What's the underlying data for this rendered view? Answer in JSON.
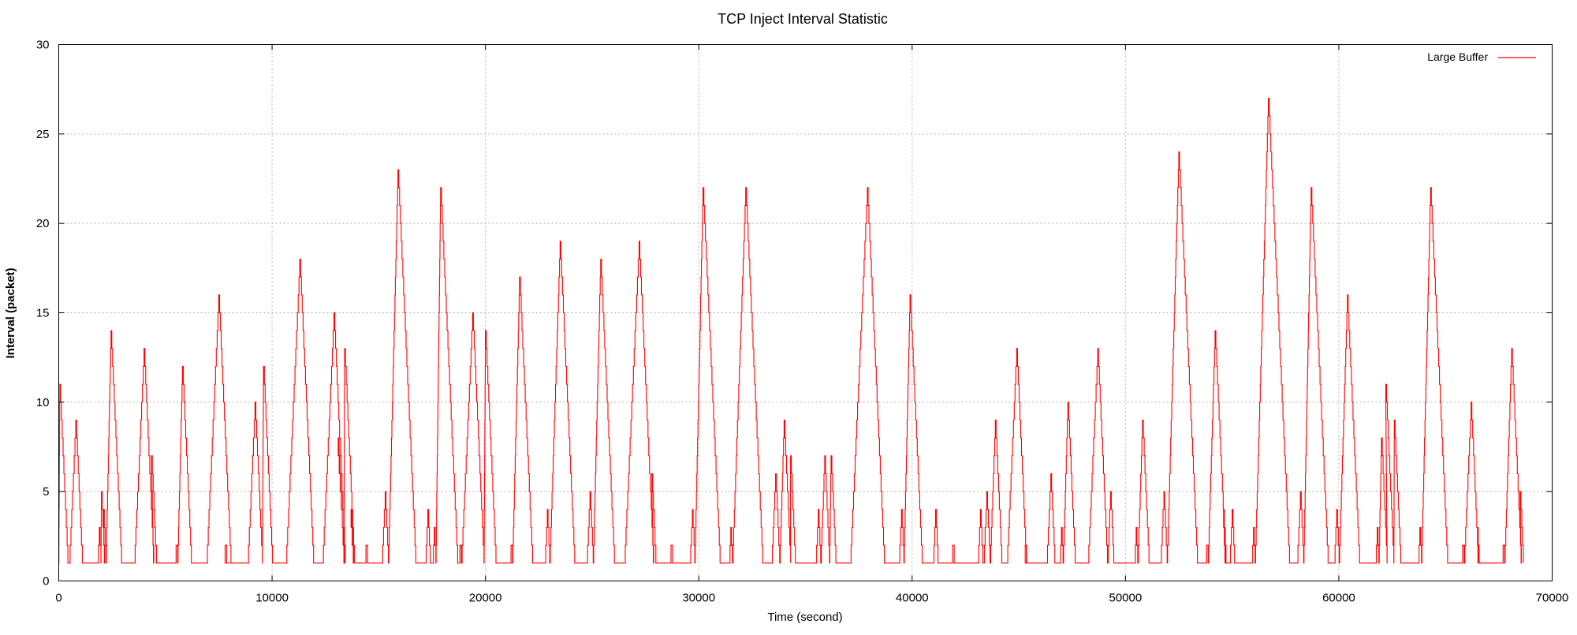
{
  "chart_data": {
    "type": "line",
    "title": "TCP Inject Interval Statistic",
    "xlabel": "Time (second)",
    "ylabel": "Interval (packet)",
    "xlim": [
      0,
      70000
    ],
    "ylim": [
      0,
      30
    ],
    "xticks": [
      "0",
      "10000",
      "20000",
      "30000",
      "40000",
      "50000",
      "60000",
      "70000"
    ],
    "yticks": [
      "0",
      "5",
      "10",
      "15",
      "20",
      "25",
      "30"
    ],
    "grid": true,
    "legend_position": "top-right",
    "baseline": 1,
    "series": [
      {
        "name": "Large Buffer",
        "color": "#ff0000",
        "peaks": [
          [
            50,
            11
          ],
          [
            800,
            9
          ],
          [
            1900,
            3
          ],
          [
            2000,
            5
          ],
          [
            2100,
            4
          ],
          [
            2450,
            14
          ],
          [
            4000,
            13
          ],
          [
            4350,
            7
          ],
          [
            5500,
            2
          ],
          [
            5800,
            12
          ],
          [
            7500,
            16
          ],
          [
            7800,
            2
          ],
          [
            9200,
            10
          ],
          [
            9600,
            12
          ],
          [
            11300,
            18
          ],
          [
            12900,
            15
          ],
          [
            13100,
            8
          ],
          [
            13400,
            13
          ],
          [
            13700,
            4
          ],
          [
            14400,
            2
          ],
          [
            15300,
            5
          ],
          [
            15900,
            23
          ],
          [
            17300,
            4
          ],
          [
            17600,
            3
          ],
          [
            17900,
            22
          ],
          [
            18800,
            2
          ],
          [
            19400,
            15
          ],
          [
            20000,
            14
          ],
          [
            21200,
            2
          ],
          [
            21600,
            17
          ],
          [
            22900,
            4
          ],
          [
            23500,
            19
          ],
          [
            24900,
            5
          ],
          [
            25400,
            18
          ],
          [
            27200,
            19
          ],
          [
            27800,
            6
          ],
          [
            28700,
            2
          ],
          [
            29700,
            4
          ],
          [
            30200,
            22
          ],
          [
            31500,
            3
          ],
          [
            32200,
            22
          ],
          [
            33600,
            6
          ],
          [
            34000,
            9
          ],
          [
            34300,
            7
          ],
          [
            35600,
            4
          ],
          [
            35900,
            7
          ],
          [
            36200,
            7
          ],
          [
            37900,
            22
          ],
          [
            39500,
            4
          ],
          [
            39900,
            16
          ],
          [
            41100,
            4
          ],
          [
            41900,
            2
          ],
          [
            43200,
            4
          ],
          [
            43500,
            5
          ],
          [
            43900,
            9
          ],
          [
            44900,
            13
          ],
          [
            45300,
            2
          ],
          [
            46500,
            6
          ],
          [
            47000,
            3
          ],
          [
            47300,
            10
          ],
          [
            48700,
            13
          ],
          [
            49300,
            5
          ],
          [
            50500,
            3
          ],
          [
            50800,
            9
          ],
          [
            51800,
            5
          ],
          [
            52500,
            24
          ],
          [
            53800,
            2
          ],
          [
            54200,
            14
          ],
          [
            54600,
            4
          ],
          [
            55000,
            4
          ],
          [
            56000,
            3
          ],
          [
            56700,
            27
          ],
          [
            58200,
            5
          ],
          [
            58700,
            22
          ],
          [
            59900,
            4
          ],
          [
            60400,
            16
          ],
          [
            61800,
            3
          ],
          [
            62000,
            8
          ],
          [
            62200,
            11
          ],
          [
            62600,
            9
          ],
          [
            63800,
            3
          ],
          [
            64300,
            22
          ],
          [
            65800,
            2
          ],
          [
            66200,
            10
          ],
          [
            66500,
            3
          ],
          [
            67700,
            2
          ],
          [
            68100,
            13
          ],
          [
            68500,
            5
          ]
        ]
      }
    ]
  }
}
